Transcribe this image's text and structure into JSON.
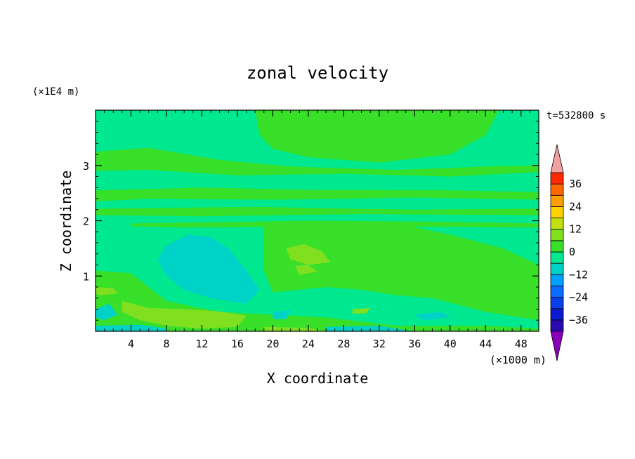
{
  "chart_data": {
    "type": "heatmap",
    "title": "zonal velocity",
    "xlabel": "X coordinate",
    "ylabel": "Z coordinate",
    "x_unit": "(×1000 m)",
    "y_unit": "(×1E4 m)",
    "time_label": "t=532800 s",
    "xlim": [
      0,
      50
    ],
    "ylim": [
      0,
      4
    ],
    "x_ticks": [
      4,
      8,
      12,
      16,
      20,
      24,
      28,
      32,
      36,
      40,
      44,
      48
    ],
    "y_ticks": [
      1,
      2,
      3
    ],
    "colorbar": {
      "levels": [
        -42,
        -36,
        -30,
        -24,
        -18,
        -12,
        -6,
        0,
        6,
        12,
        18,
        24,
        30,
        36,
        42
      ],
      "colors": [
        "#4a0a8c",
        "#2a0ab0",
        "#0a1ad0",
        "#0a40e8",
        "#0a6cff",
        "#00a0ff",
        "#00d2c8",
        "#00e890",
        "#38e02a",
        "#80e020",
        "#c0e010",
        "#ffd200",
        "#ffa000",
        "#ff6800",
        "#ff2a00",
        "#e01010"
      ],
      "under_color": "#8a00b8",
      "over_color": "#f2a0a0",
      "tick_values": [
        36,
        24,
        12,
        0,
        -12,
        -24,
        -36
      ],
      "tick_labels": [
        "36",
        "24",
        "12",
        "0",
        "−12",
        "−24",
        "−36"
      ]
    },
    "field": {
      "background_level": -3,
      "regions": [
        {
          "level": 3,
          "poly": [
            [
              18,
              4
            ],
            [
              45.5,
              4
            ],
            [
              44,
              3.55
            ],
            [
              40,
              3.2
            ],
            [
              32,
              3.05
            ],
            [
              24,
              3.15
            ],
            [
              20,
              3.3
            ],
            [
              18.5,
              3.55
            ]
          ]
        },
        {
          "level": 3,
          "poly": [
            [
              0,
              3.25
            ],
            [
              6,
              3.32
            ],
            [
              14,
              3.1
            ],
            [
              22,
              2.98
            ],
            [
              34,
              2.92
            ],
            [
              44,
              2.98
            ],
            [
              50,
              3.0
            ],
            [
              50,
              2.88
            ],
            [
              40,
              2.8
            ],
            [
              28,
              2.85
            ],
            [
              16,
              2.82
            ],
            [
              6,
              2.92
            ],
            [
              0,
              2.9
            ]
          ]
        },
        {
          "level": 3,
          "poly": [
            [
              0,
              2.55
            ],
            [
              12,
              2.6
            ],
            [
              24,
              2.56
            ],
            [
              40,
              2.55
            ],
            [
              50,
              2.52
            ],
            [
              50,
              2.38
            ],
            [
              36,
              2.42
            ],
            [
              20,
              2.38
            ],
            [
              6,
              2.4
            ],
            [
              0,
              2.35
            ]
          ]
        },
        {
          "level": 3,
          "poly": [
            [
              0,
              2.22
            ],
            [
              18,
              2.25
            ],
            [
              36,
              2.2
            ],
            [
              50,
              2.22
            ],
            [
              50,
              2.1
            ],
            [
              30,
              2.12
            ],
            [
              12,
              2.08
            ],
            [
              0,
              2.1
            ]
          ]
        },
        {
          "level": 3,
          "poly": [
            [
              4,
              1.95
            ],
            [
              24,
              2.0
            ],
            [
              40,
              1.98
            ],
            [
              50,
              1.95
            ],
            [
              50,
              1.88
            ],
            [
              30,
              1.9
            ],
            [
              10,
              1.88
            ],
            [
              4,
              1.9
            ]
          ]
        },
        {
          "level": 3,
          "poly": [
            [
              19,
              1.9
            ],
            [
              34,
              1.95
            ],
            [
              40,
              1.75
            ],
            [
              46,
              1.5
            ],
            [
              50,
              1.2
            ],
            [
              50,
              0.2
            ],
            [
              44,
              0.35
            ],
            [
              38,
              0.6
            ],
            [
              34,
              0.65
            ],
            [
              30,
              0.75
            ],
            [
              26,
              0.8
            ],
            [
              20,
              0.7
            ],
            [
              19,
              1.1
            ]
          ]
        },
        {
          "level": 3,
          "poly": [
            [
              0,
              1.1
            ],
            [
              4,
              1.05
            ],
            [
              8,
              0.55
            ],
            [
              14,
              0.35
            ],
            [
              20,
              0.3
            ],
            [
              26,
              0.25
            ],
            [
              34,
              0.1
            ],
            [
              44,
              0.1
            ],
            [
              50,
              0.05
            ],
            [
              50,
              0
            ],
            [
              0,
              0
            ]
          ]
        },
        {
          "level": 9,
          "poly": [
            [
              21.5,
              1.5
            ],
            [
              23.5,
              1.58
            ],
            [
              25.5,
              1.45
            ],
            [
              26.5,
              1.25
            ],
            [
              24,
              1.2
            ],
            [
              22,
              1.3
            ]
          ]
        },
        {
          "level": 9,
          "poly": [
            [
              22.5,
              1.18
            ],
            [
              24,
              1.2
            ],
            [
              25,
              1.08
            ],
            [
              23,
              1.02
            ]
          ]
        },
        {
          "level": 9,
          "poly": [
            [
              0,
              0.8
            ],
            [
              2,
              0.78
            ],
            [
              2.5,
              0.68
            ],
            [
              0.5,
              0.65
            ],
            [
              0,
              0.68
            ]
          ]
        },
        {
          "level": 9,
          "poly": [
            [
              3,
              0.55
            ],
            [
              6,
              0.42
            ],
            [
              10,
              0.4
            ],
            [
              14,
              0.36
            ],
            [
              17,
              0.28
            ],
            [
              16,
              0.08
            ],
            [
              12,
              0.05
            ],
            [
              8,
              0.1
            ],
            [
              5,
              0.2
            ],
            [
              3,
              0.35
            ]
          ]
        },
        {
          "level": 9,
          "poly": [
            [
              29,
              0.4
            ],
            [
              31,
              0.42
            ],
            [
              30.5,
              0.32
            ],
            [
              29,
              0.32
            ]
          ]
        },
        {
          "level": 9,
          "poly": [
            [
              19,
              0.08
            ],
            [
              24,
              0.06
            ],
            [
              26,
              0.0
            ],
            [
              19,
              0.0
            ]
          ]
        },
        {
          "level": -9,
          "poly": [
            [
              8,
              1.55
            ],
            [
              10.5,
              1.75
            ],
            [
              13,
              1.7
            ],
            [
              15,
              1.5
            ],
            [
              17,
              1.1
            ],
            [
              18.5,
              0.75
            ],
            [
              17,
              0.5
            ],
            [
              13,
              0.6
            ],
            [
              10,
              0.75
            ],
            [
              8,
              1.0
            ],
            [
              7,
              1.3
            ]
          ]
        },
        {
          "level": -9,
          "poly": [
            [
              0,
              0.4
            ],
            [
              1.5,
              0.5
            ],
            [
              2.5,
              0.3
            ],
            [
              1,
              0.2
            ],
            [
              0,
              0.25
            ]
          ]
        },
        {
          "level": -9,
          "poly": [
            [
              0,
              0.1
            ],
            [
              5,
              0.12
            ],
            [
              8,
              0.05
            ],
            [
              8,
              0
            ],
            [
              0,
              0
            ]
          ]
        },
        {
          "level": -9,
          "poly": [
            [
              20,
              0.35
            ],
            [
              22,
              0.38
            ],
            [
              21.5,
              0.22
            ],
            [
              20,
              0.22
            ]
          ]
        },
        {
          "level": -9,
          "poly": [
            [
              36,
              0.3
            ],
            [
              39,
              0.35
            ],
            [
              40,
              0.25
            ],
            [
              37,
              0.2
            ]
          ]
        },
        {
          "level": -9,
          "poly": [
            [
              26,
              0.08
            ],
            [
              32,
              0.1
            ],
            [
              36,
              0.0
            ],
            [
              26,
              0.0
            ]
          ]
        }
      ]
    }
  }
}
